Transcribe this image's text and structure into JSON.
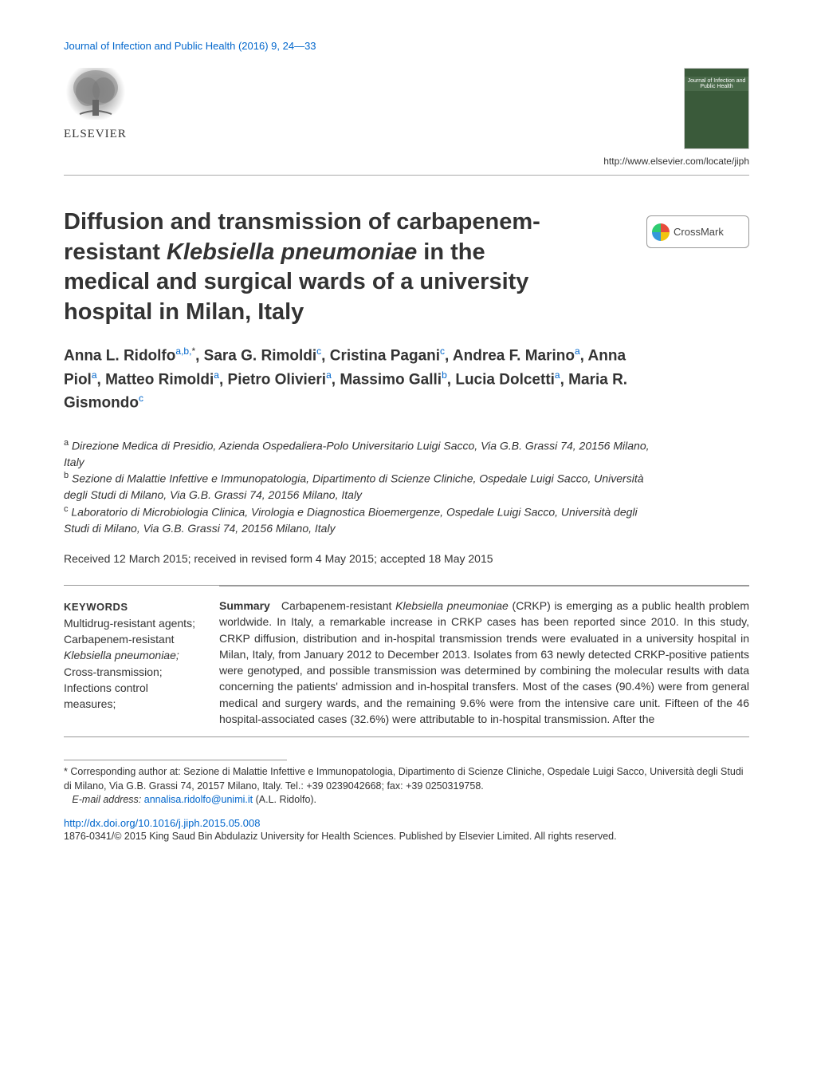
{
  "journal_ref": "Journal of Infection and Public Health (2016) 9, 24—33",
  "publisher": {
    "name": "ELSEVIER",
    "url": "http://www.elsevier.com/locate/jiph",
    "cover_text": "Journal of Infection and Public Health"
  },
  "crossmark_label": "CrossMark",
  "title_parts": {
    "pre": "Diffusion and transmission of carbapenem-resistant ",
    "italic1": "Klebsiella pneumoniae",
    "post": " in the medical and surgical wards of a university hospital in Milan, Italy"
  },
  "authors_html": "Anna L. Ridolfo|a,b,*|, Sara G. Rimoldi|c|, Cristina Pagani|c|, Andrea F. Marino|a|, Anna Piol|a|, Matteo Rimoldi|a|, Pietro Olivieri|a|, Massimo Galli|b|, Lucia Dolcetti|a|, Maria R. Gismondo|c|",
  "affiliations": {
    "a": "Direzione Medica di Presidio, Azienda Ospedaliera-Polo Universitario Luigi Sacco, Via G.B. Grassi 74, 20156 Milano, Italy",
    "b": "Sezione di Malattie Infettive e Immunopatologia, Dipartimento di Scienze Cliniche, Ospedale Luigi Sacco, Università degli Studi di Milano, Via G.B. Grassi 74, 20156 Milano, Italy",
    "c": "Laboratorio di Microbiologia Clinica, Virologia e Diagnostica Bioemergenze, Ospedale Luigi Sacco, Università degli Studi di Milano, Via G.B. Grassi 74, 20156 Milano, Italy"
  },
  "received": "Received 12 March 2015; received in revised form 4 May 2015; accepted 18 May 2015",
  "keywords": {
    "heading": "KEYWORDS",
    "items": [
      "Multidrug-resistant agents;",
      "Carbapenem-resistant",
      "Klebsiella pneumoniae;",
      "Cross-transmission;",
      "Infections control measures;"
    ]
  },
  "summary": {
    "heading": "Summary",
    "text_pre": "Carbapenem-resistant ",
    "text_italic": "Klebsiella pneumoniae",
    "text_post": " (CRKP) is emerging as a public health problem worldwide. In Italy, a remarkable increase in CRKP cases has been reported since 2010. In this study, CRKP diffusion, distribution and in-hospital transmission trends were evaluated in a university hospital in Milan, Italy, from January 2012 to December 2013. Isolates from 63 newly detected CRKP-positive patients were genotyped, and possible transmission was determined by combining the molecular results with data concerning the patients' admission and in-hospital transfers. Most of the cases (90.4%) were from general medical and surgery wards, and the remaining 9.6% were from the intensive care unit. Fifteen of the 46 hospital-associated cases (32.6%) were attributable to in-hospital transmission. After the"
  },
  "footnote": {
    "star": "* Corresponding author at: Sezione di Malattie Infettive e Immunopatologia, Dipartimento di Scienze Cliniche, Ospedale Luigi Sacco, Università degli Studi di Milano, Via G.B. Grassi 74, 20157 Milano, Italy. Tel.: +39 0239042668; fax: +39 0250319758.",
    "email_label": "E-mail address:",
    "email": "annalisa.ridolfo@unimi.it",
    "email_name": "(A.L. Ridolfo)."
  },
  "doi": "http://dx.doi.org/10.1016/j.jiph.2015.05.008",
  "copyright": "1876-0341/© 2015 King Saud Bin Abdulaziz University for Health Sciences. Published by Elsevier Limited. All rights reserved.",
  "colors": {
    "link": "#0066cc",
    "text": "#333333",
    "border": "#999999",
    "cover_bg": "#3a5a3a"
  }
}
